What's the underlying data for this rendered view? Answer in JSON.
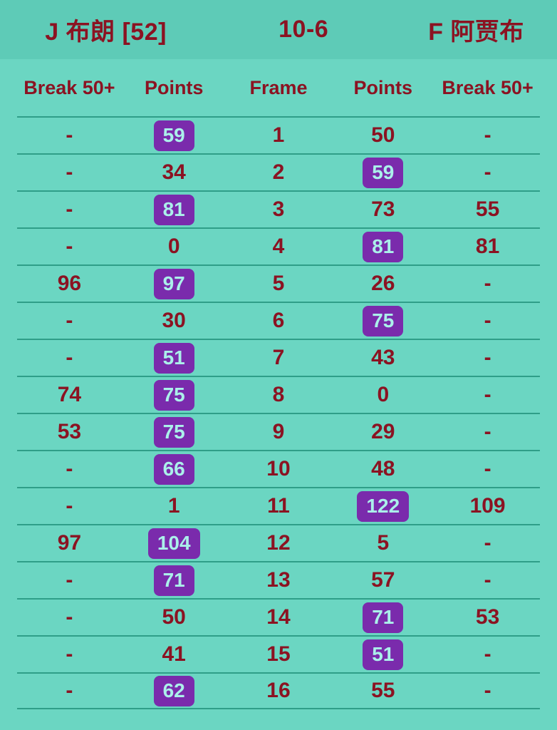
{
  "header": {
    "player_left": "J 布朗 [52]",
    "match_score": "10-6",
    "player_right": "F 阿贾布"
  },
  "table": {
    "columns": [
      "Break 50+",
      "Points",
      "Frame",
      "Points",
      "Break 50+"
    ],
    "rows": [
      {
        "frame": "1",
        "p1_break": "-",
        "p1_points": "59",
        "p2_points": "50",
        "p2_break": "-",
        "winner": "p1"
      },
      {
        "frame": "2",
        "p1_break": "-",
        "p1_points": "34",
        "p2_points": "59",
        "p2_break": "-",
        "winner": "p2"
      },
      {
        "frame": "3",
        "p1_break": "-",
        "p1_points": "81",
        "p2_points": "73",
        "p2_break": "55",
        "winner": "p1"
      },
      {
        "frame": "4",
        "p1_break": "-",
        "p1_points": "0",
        "p2_points": "81",
        "p2_break": "81",
        "winner": "p2"
      },
      {
        "frame": "5",
        "p1_break": "96",
        "p1_points": "97",
        "p2_points": "26",
        "p2_break": "-",
        "winner": "p1"
      },
      {
        "frame": "6",
        "p1_break": "-",
        "p1_points": "30",
        "p2_points": "75",
        "p2_break": "-",
        "winner": "p2"
      },
      {
        "frame": "7",
        "p1_break": "-",
        "p1_points": "51",
        "p2_points": "43",
        "p2_break": "-",
        "winner": "p1"
      },
      {
        "frame": "8",
        "p1_break": "74",
        "p1_points": "75",
        "p2_points": "0",
        "p2_break": "-",
        "winner": "p1"
      },
      {
        "frame": "9",
        "p1_break": "53",
        "p1_points": "75",
        "p2_points": "29",
        "p2_break": "-",
        "winner": "p1"
      },
      {
        "frame": "10",
        "p1_break": "-",
        "p1_points": "66",
        "p2_points": "48",
        "p2_break": "-",
        "winner": "p1"
      },
      {
        "frame": "11",
        "p1_break": "-",
        "p1_points": "1",
        "p2_points": "122",
        "p2_break": "109",
        "winner": "p2"
      },
      {
        "frame": "12",
        "p1_break": "97",
        "p1_points": "104",
        "p2_points": "5",
        "p2_break": "-",
        "winner": "p1"
      },
      {
        "frame": "13",
        "p1_break": "-",
        "p1_points": "71",
        "p2_points": "57",
        "p2_break": "-",
        "winner": "p1"
      },
      {
        "frame": "14",
        "p1_break": "-",
        "p1_points": "50",
        "p2_points": "71",
        "p2_break": "53",
        "winner": "p2"
      },
      {
        "frame": "15",
        "p1_break": "-",
        "p1_points": "41",
        "p2_points": "51",
        "p2_break": "-",
        "winner": "p2"
      },
      {
        "frame": "16",
        "p1_break": "-",
        "p1_points": "62",
        "p2_points": "55",
        "p2_break": "-",
        "winner": "p1"
      }
    ]
  },
  "colors": {
    "bg_header": "#5ecbb7",
    "bg_body": "#6bd6c2",
    "text_red": "#8b1322",
    "separator": "#2f9e88",
    "badge_bg": "#7a2bac",
    "badge_text": "#abf0ea"
  }
}
